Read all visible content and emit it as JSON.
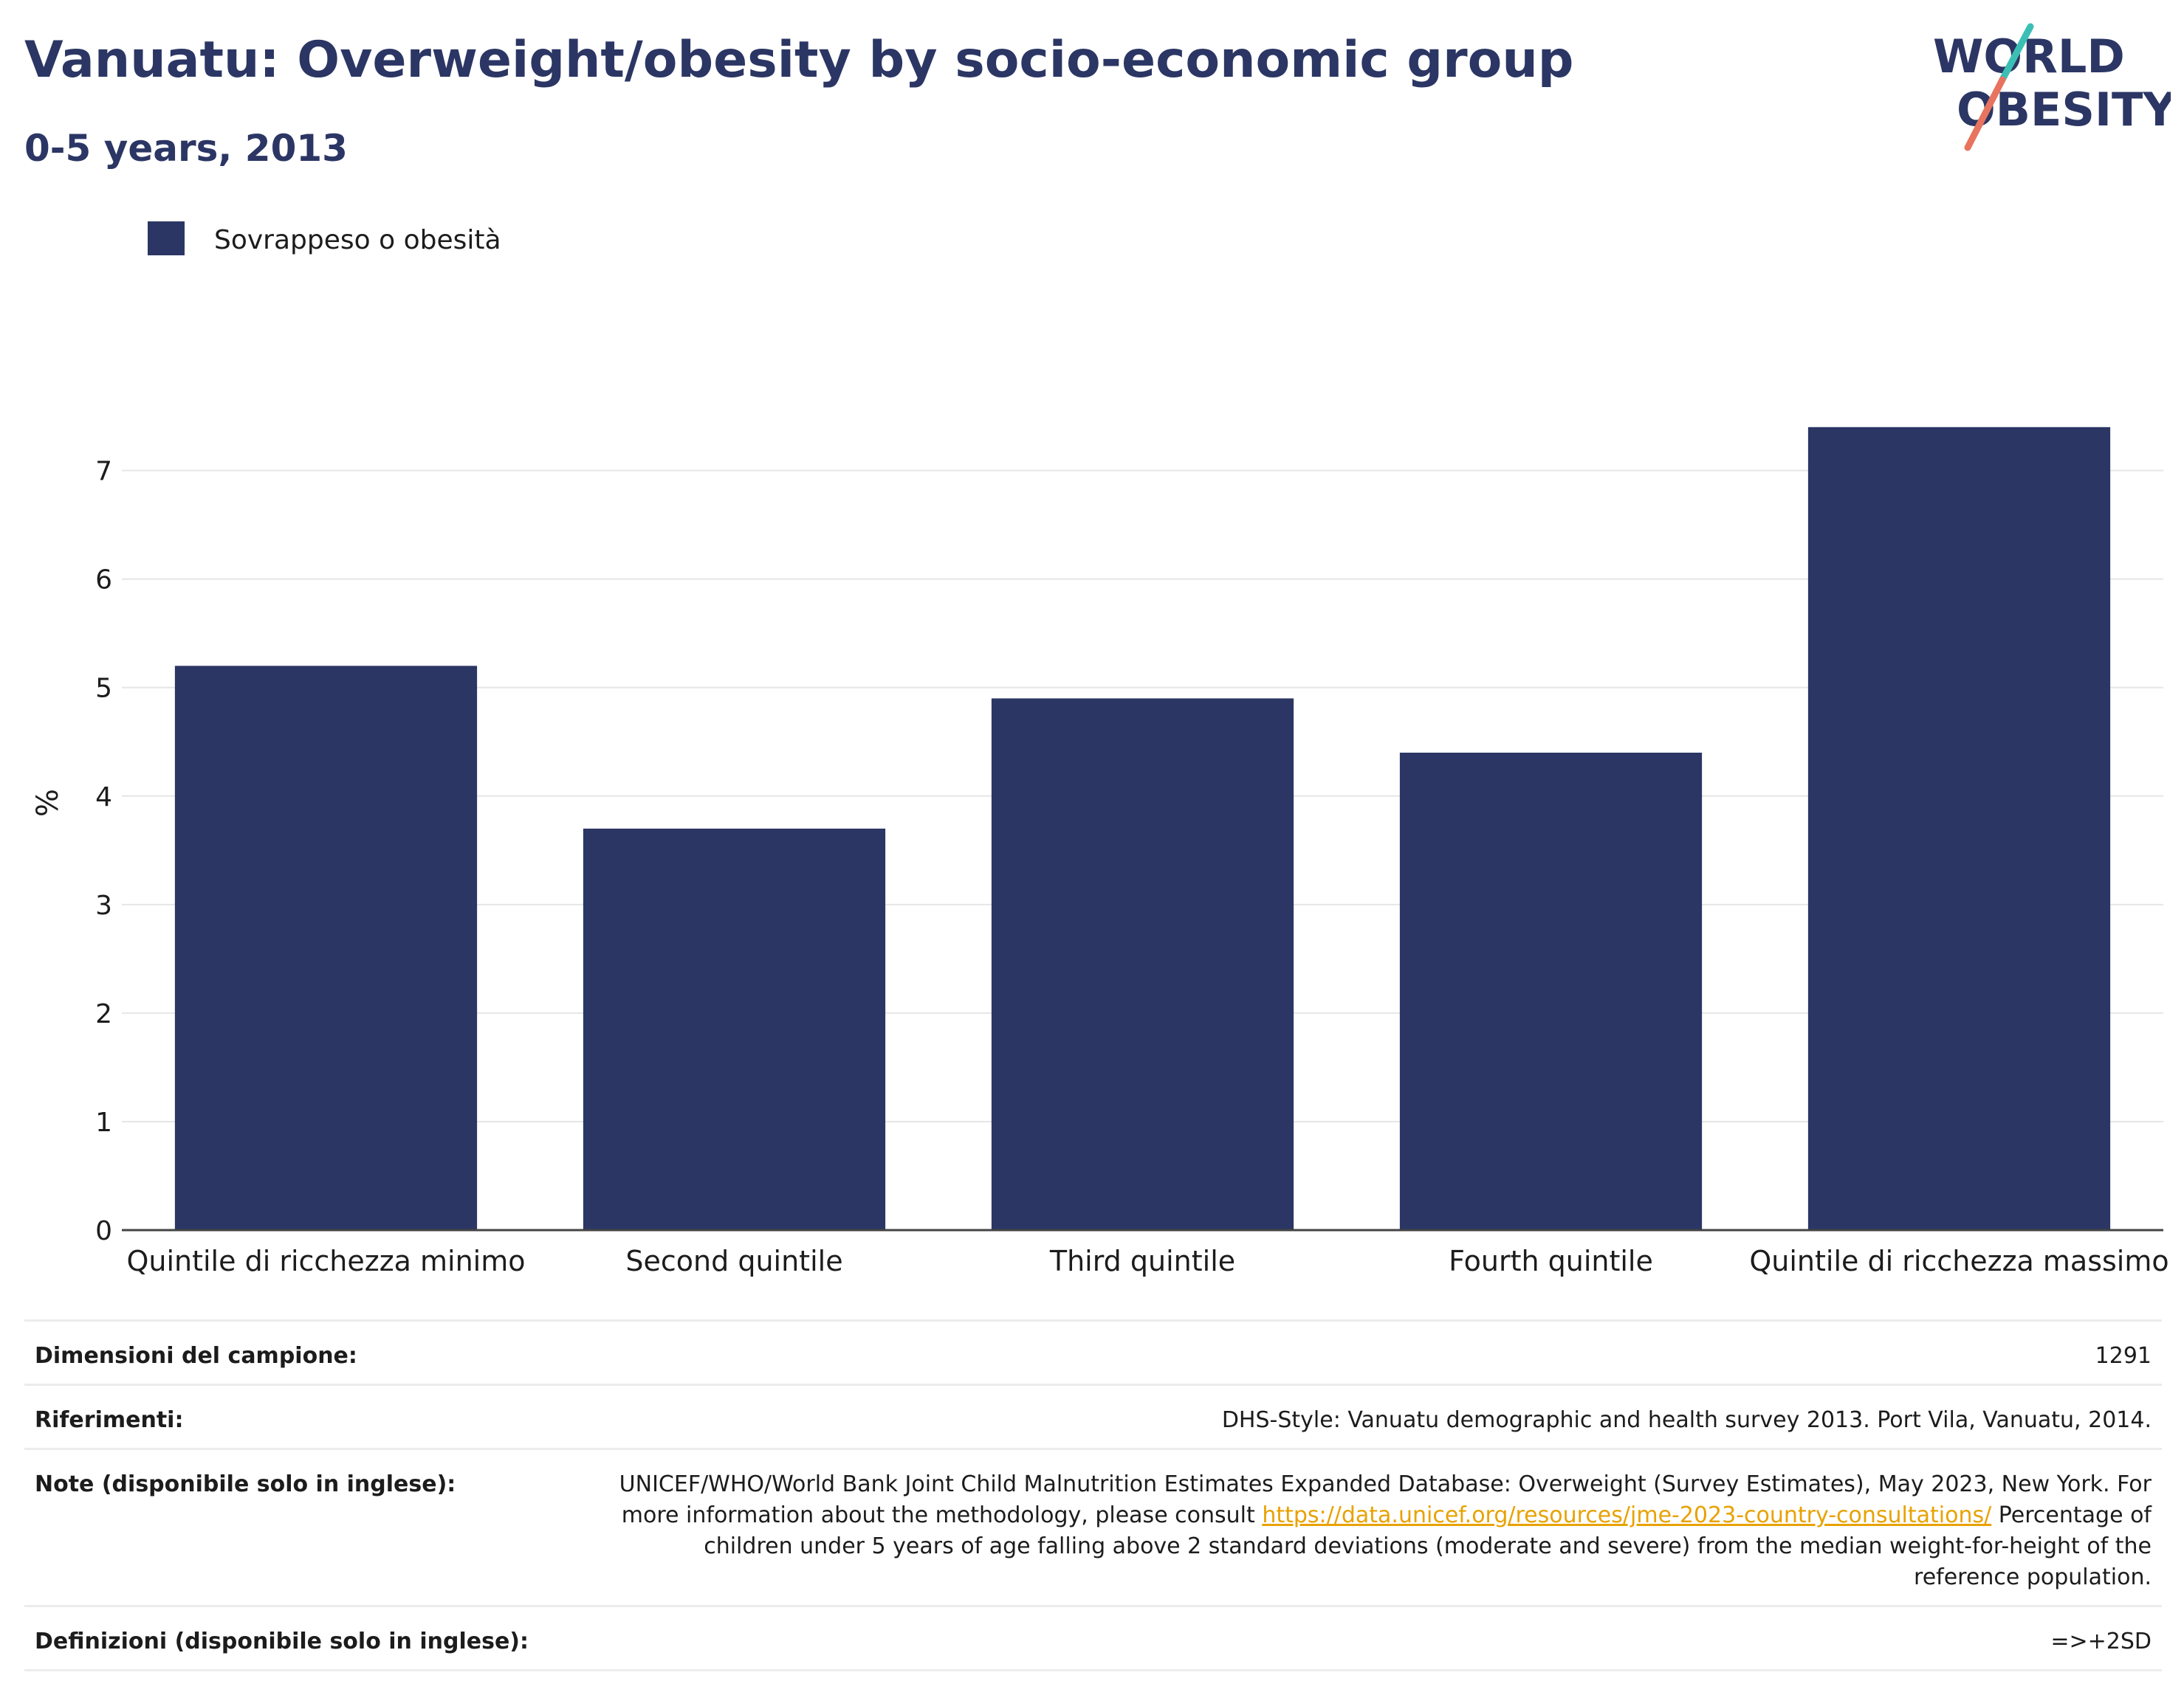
{
  "header": {
    "title": "Vanuatu: Overweight/obesity by socio-economic group",
    "subtitle": "0-5 years, 2013"
  },
  "logo": {
    "line1": "WORLD",
    "line2": "OBESITY",
    "slash_colors": [
      "#3bbfb4",
      "#e8735f"
    ]
  },
  "colors": {
    "bar": "#2b3664",
    "title": "#2b3664",
    "link": "#e8a200",
    "grid": "#e6e6e6"
  },
  "chart_data": {
    "type": "bar",
    "categories": [
      "Quintile di ricchezza minimo",
      "Second quintile",
      "Third quintile",
      "Fourth quintile",
      "Quintile di ricchezza massimo"
    ],
    "series": [
      {
        "name": "Sovrappeso o obesità",
        "values": [
          5.2,
          3.7,
          4.9,
          4.4,
          7.4
        ]
      }
    ],
    "ylabel": "%",
    "ylim": [
      0,
      7.8
    ],
    "yticks": [
      0,
      1,
      2,
      3,
      4,
      5,
      6,
      7
    ],
    "grid": true,
    "legend_position": "top-left"
  },
  "meta": [
    {
      "label": "Dimensioni del campione:",
      "value": "1291"
    },
    {
      "label": "Riferimenti:",
      "value": "DHS-Style: Vanuatu demographic and health survey 2013. Port Vila, Vanuatu, 2014."
    },
    {
      "label": "Note (disponibile solo in inglese):",
      "value_pre": "UNICEF/WHO/World Bank Joint Child Malnutrition Estimates Expanded Database: Overweight (Survey Estimates), May 2023, New York. For more information about the methodology, please consult ",
      "value_link": "https://data.unicef.org/resources/jme-2023-country-consultations/",
      "value_post": " Percentage of children under 5 years of age falling above 2 standard deviations (moderate and severe) from the median weight-for-height of the reference population."
    },
    {
      "label": "Definizioni (disponibile solo in inglese):",
      "value": "=>+2SD"
    }
  ]
}
